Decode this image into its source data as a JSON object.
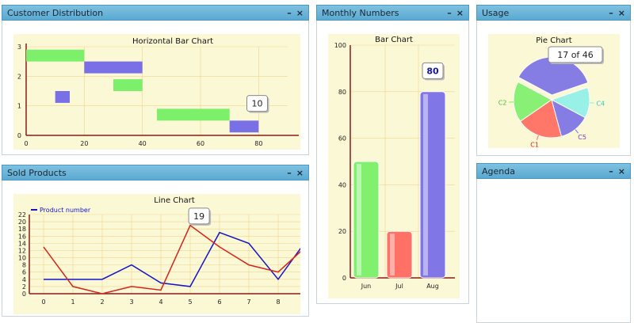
{
  "panels": {
    "customer": {
      "title": "Customer Distribution",
      "minimize": "–",
      "close": "×"
    },
    "sold": {
      "title": "Sold Products",
      "minimize": "–",
      "close": "×"
    },
    "monthly": {
      "title": "Monthly Numbers",
      "minimize": "–",
      "close": "×"
    },
    "usage": {
      "title": "Usage",
      "minimize": "–",
      "close": "×"
    },
    "agenda": {
      "title": "Agenda",
      "minimize": "–",
      "close": "×"
    }
  },
  "colors": {
    "green": "#7cf06a",
    "blue": "#7a70e6",
    "red": "#ff6a5e",
    "cyan": "#8ff0e8",
    "chart_bg": "#fbf8d6"
  },
  "chart_data": [
    {
      "id": "hbar",
      "type": "bar",
      "orientation": "horizontal",
      "title": "Horizontal Bar Chart",
      "xlim": [
        0,
        90
      ],
      "ylim": [
        0,
        3
      ],
      "xticks": [
        "0",
        "20",
        "40",
        "60",
        "80"
      ],
      "yticks": [
        "0",
        "1",
        "2",
        "3"
      ],
      "bars": [
        {
          "start": 0,
          "end": 20,
          "y_low": 2.5,
          "y_high": 2.9,
          "color": "green"
        },
        {
          "start": 20,
          "end": 40,
          "y_low": 2.1,
          "y_high": 2.5,
          "color": "blue"
        },
        {
          "start": 30,
          "end": 40,
          "y_low": 1.5,
          "y_high": 1.9,
          "color": "green"
        },
        {
          "start": 10,
          "end": 15,
          "y_low": 1.1,
          "y_high": 1.5,
          "color": "blue"
        },
        {
          "start": 45,
          "end": 70,
          "y_low": 0.5,
          "y_high": 0.9,
          "color": "green"
        },
        {
          "start": 70,
          "end": 80,
          "y_low": 0.1,
          "y_high": 0.5,
          "color": "blue"
        }
      ],
      "tooltip": "10"
    },
    {
      "id": "line",
      "type": "line",
      "title": "Line Chart",
      "ylim": [
        0,
        22
      ],
      "xticks": [
        "0",
        "1",
        "2",
        "3",
        "4",
        "5",
        "6",
        "7",
        "8"
      ],
      "yticks": [
        "0",
        "2",
        "4",
        "6",
        "8",
        "10",
        "12",
        "14",
        "16",
        "18",
        "20",
        "22"
      ],
      "series": [
        {
          "name": "Product number",
          "color": "#1414c8",
          "x": [
            0,
            1,
            2,
            3,
            4,
            5,
            6,
            7,
            8,
            8.8
          ],
          "values": [
            4,
            4,
            4,
            8,
            3,
            2,
            17,
            14,
            4,
            13
          ]
        },
        {
          "name": "",
          "color": "#d4241c",
          "x": [
            0,
            1,
            2,
            3,
            4,
            5,
            6,
            7,
            8,
            8.8
          ],
          "values": [
            13,
            2,
            0,
            2,
            1,
            19,
            13,
            8,
            6,
            12
          ]
        }
      ],
      "legend": "top-left",
      "tooltip": "19"
    },
    {
      "id": "bar",
      "type": "bar",
      "title": "Bar Chart",
      "categories": [
        "Jun",
        "Jul",
        "Aug"
      ],
      "values": [
        50,
        20,
        80
      ],
      "colors": [
        "green",
        "red",
        "blue"
      ],
      "ylim": [
        0,
        100
      ],
      "yticks": [
        "0",
        "20",
        "40",
        "60",
        "80",
        "100"
      ],
      "tooltip": "80"
    },
    {
      "id": "pie",
      "type": "pie",
      "title": "Pie Chart",
      "slices": [
        {
          "label": "",
          "value": 17,
          "color": "blue"
        },
        {
          "label": "C4",
          "value": 6,
          "color": "cyan"
        },
        {
          "label": "C5",
          "value": 6,
          "color": "blue"
        },
        {
          "label": "C1",
          "value": 9,
          "color": "red"
        },
        {
          "label": "C2",
          "value": 8,
          "color": "green"
        }
      ],
      "tooltip": "17 of 46"
    }
  ]
}
